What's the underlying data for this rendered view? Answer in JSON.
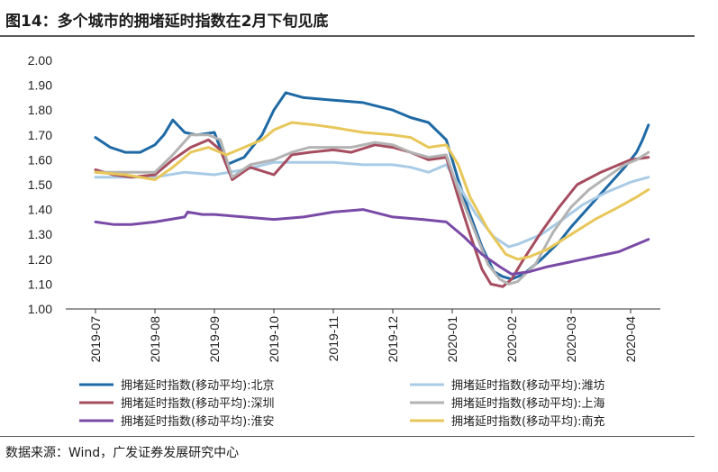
{
  "header": {
    "title": "图14：多个城市的拥堵延时指数在2月下旬见底"
  },
  "footer": {
    "source": "数据来源：Wind，广发证券发展研究中心"
  },
  "colors": {
    "beijing": "#1f6aa5",
    "weifang": "#a9cbe6",
    "shenzhen": "#a64d5f",
    "shanghai": "#b3b3b3",
    "huaian": "#7a4ba6",
    "nanchong": "#e8c75a"
  },
  "chart_data": {
    "type": "line",
    "title": "多个城市的拥堵延时指数在2月下旬见底",
    "xlabel": "",
    "ylabel": "",
    "ylim": [
      1.0,
      2.0
    ],
    "yticks": [
      "1.00",
      "1.10",
      "1.20",
      "1.30",
      "1.40",
      "1.50",
      "1.60",
      "1.70",
      "1.80",
      "1.90",
      "2.00"
    ],
    "categories": [
      "2019-07",
      "2019-08",
      "2019-09",
      "2019-10",
      "2019-11",
      "2019-12",
      "2020-01",
      "2020-02",
      "2020-03",
      "2020-04"
    ],
    "legend_position": "bottom",
    "series": [
      {
        "key": "beijing",
        "name": "拥堵延时指数(移动平均):北京",
        "points": [
          [
            0,
            1.69
          ],
          [
            0.25,
            1.65
          ],
          [
            0.5,
            1.63
          ],
          [
            0.75,
            1.63
          ],
          [
            1.0,
            1.66
          ],
          [
            1.15,
            1.7
          ],
          [
            1.3,
            1.76
          ],
          [
            1.5,
            1.71
          ],
          [
            1.7,
            1.7
          ],
          [
            2.0,
            1.71
          ],
          [
            2.2,
            1.58
          ],
          [
            2.5,
            1.61
          ],
          [
            2.8,
            1.7
          ],
          [
            3.0,
            1.8
          ],
          [
            3.2,
            1.87
          ],
          [
            3.5,
            1.85
          ],
          [
            4.0,
            1.84
          ],
          [
            4.5,
            1.83
          ],
          [
            5.0,
            1.8
          ],
          [
            5.3,
            1.77
          ],
          [
            5.6,
            1.75
          ],
          [
            5.9,
            1.68
          ],
          [
            6.1,
            1.52
          ],
          [
            6.3,
            1.38
          ],
          [
            6.5,
            1.25
          ],
          [
            6.7,
            1.15
          ],
          [
            6.85,
            1.13
          ],
          [
            7.0,
            1.12
          ],
          [
            7.2,
            1.14
          ],
          [
            7.5,
            1.2
          ],
          [
            7.8,
            1.27
          ],
          [
            8.0,
            1.33
          ],
          [
            8.3,
            1.41
          ],
          [
            8.6,
            1.49
          ],
          [
            8.9,
            1.57
          ],
          [
            9.1,
            1.63
          ],
          [
            9.2,
            1.68
          ],
          [
            9.3,
            1.74
          ]
        ]
      },
      {
        "key": "weifang",
        "name": "拥堵延时指数(移动平均):潍坊",
        "points": [
          [
            0,
            1.53
          ],
          [
            0.5,
            1.53
          ],
          [
            1.0,
            1.53
          ],
          [
            1.5,
            1.55
          ],
          [
            2.0,
            1.54
          ],
          [
            2.5,
            1.56
          ],
          [
            3.0,
            1.59
          ],
          [
            3.5,
            1.59
          ],
          [
            4.0,
            1.59
          ],
          [
            4.5,
            1.58
          ],
          [
            5.0,
            1.58
          ],
          [
            5.3,
            1.57
          ],
          [
            5.6,
            1.55
          ],
          [
            5.9,
            1.58
          ],
          [
            6.1,
            1.5
          ],
          [
            6.4,
            1.38
          ],
          [
            6.7,
            1.29
          ],
          [
            6.95,
            1.25
          ],
          [
            7.1,
            1.26
          ],
          [
            7.5,
            1.3
          ],
          [
            7.8,
            1.35
          ],
          [
            8.2,
            1.42
          ],
          [
            8.6,
            1.47
          ],
          [
            9.0,
            1.51
          ],
          [
            9.3,
            1.53
          ]
        ]
      },
      {
        "key": "shenzhen",
        "name": "拥堵延时指数(移动平均):深圳",
        "points": [
          [
            0,
            1.56
          ],
          [
            0.3,
            1.54
          ],
          [
            0.6,
            1.53
          ],
          [
            1.0,
            1.54
          ],
          [
            1.3,
            1.6
          ],
          [
            1.6,
            1.65
          ],
          [
            1.9,
            1.68
          ],
          [
            2.1,
            1.64
          ],
          [
            2.3,
            1.52
          ],
          [
            2.6,
            1.57
          ],
          [
            3.0,
            1.54
          ],
          [
            3.3,
            1.62
          ],
          [
            3.6,
            1.63
          ],
          [
            4.0,
            1.64
          ],
          [
            4.3,
            1.63
          ],
          [
            4.7,
            1.66
          ],
          [
            5.0,
            1.65
          ],
          [
            5.3,
            1.63
          ],
          [
            5.6,
            1.6
          ],
          [
            5.9,
            1.61
          ],
          [
            6.1,
            1.45
          ],
          [
            6.3,
            1.3
          ],
          [
            6.5,
            1.16
          ],
          [
            6.65,
            1.1
          ],
          [
            6.85,
            1.09
          ],
          [
            7.0,
            1.12
          ],
          [
            7.2,
            1.2
          ],
          [
            7.5,
            1.31
          ],
          [
            7.8,
            1.41
          ],
          [
            8.1,
            1.5
          ],
          [
            8.5,
            1.55
          ],
          [
            8.8,
            1.58
          ],
          [
            9.0,
            1.6
          ],
          [
            9.3,
            1.61
          ]
        ]
      },
      {
        "key": "shanghai",
        "name": "拥堵延时指数(移动平均):上海",
        "points": [
          [
            0,
            1.55
          ],
          [
            0.5,
            1.55
          ],
          [
            1.0,
            1.55
          ],
          [
            1.3,
            1.62
          ],
          [
            1.6,
            1.7
          ],
          [
            1.9,
            1.7
          ],
          [
            2.1,
            1.68
          ],
          [
            2.3,
            1.53
          ],
          [
            2.6,
            1.58
          ],
          [
            3.0,
            1.6
          ],
          [
            3.3,
            1.63
          ],
          [
            3.6,
            1.65
          ],
          [
            4.0,
            1.65
          ],
          [
            4.3,
            1.65
          ],
          [
            4.7,
            1.67
          ],
          [
            5.0,
            1.66
          ],
          [
            5.3,
            1.63
          ],
          [
            5.6,
            1.61
          ],
          [
            5.9,
            1.62
          ],
          [
            6.1,
            1.48
          ],
          [
            6.4,
            1.3
          ],
          [
            6.6,
            1.18
          ],
          [
            6.8,
            1.12
          ],
          [
            6.95,
            1.1
          ],
          [
            7.1,
            1.11
          ],
          [
            7.4,
            1.18
          ],
          [
            7.7,
            1.31
          ],
          [
            8.0,
            1.41
          ],
          [
            8.3,
            1.48
          ],
          [
            8.6,
            1.53
          ],
          [
            8.9,
            1.58
          ],
          [
            9.1,
            1.6
          ],
          [
            9.3,
            1.63
          ]
        ]
      },
      {
        "key": "huaian",
        "name": "拥堵延时指数(移动平均):淮安",
        "points": [
          [
            0,
            1.35
          ],
          [
            0.3,
            1.34
          ],
          [
            0.6,
            1.34
          ],
          [
            1.0,
            1.35
          ],
          [
            1.5,
            1.37
          ],
          [
            1.55,
            1.39
          ],
          [
            1.8,
            1.38
          ],
          [
            2.0,
            1.38
          ],
          [
            2.5,
            1.37
          ],
          [
            3.0,
            1.36
          ],
          [
            3.5,
            1.37
          ],
          [
            4.0,
            1.39
          ],
          [
            4.5,
            1.4
          ],
          [
            5.0,
            1.37
          ],
          [
            5.5,
            1.36
          ],
          [
            5.9,
            1.35
          ],
          [
            6.2,
            1.29
          ],
          [
            6.5,
            1.22
          ],
          [
            6.8,
            1.17
          ],
          [
            7.0,
            1.14
          ],
          [
            7.3,
            1.15
          ],
          [
            7.6,
            1.17
          ],
          [
            8.0,
            1.19
          ],
          [
            8.4,
            1.21
          ],
          [
            8.8,
            1.23
          ],
          [
            9.1,
            1.26
          ],
          [
            9.3,
            1.28
          ]
        ]
      },
      {
        "key": "nanchong",
        "name": "拥堵延时指数(移动平均):南充",
        "points": [
          [
            0,
            1.55
          ],
          [
            0.5,
            1.54
          ],
          [
            1.0,
            1.52
          ],
          [
            1.3,
            1.57
          ],
          [
            1.6,
            1.63
          ],
          [
            1.9,
            1.65
          ],
          [
            2.2,
            1.62
          ],
          [
            2.5,
            1.65
          ],
          [
            2.8,
            1.68
          ],
          [
            3.0,
            1.72
          ],
          [
            3.3,
            1.75
          ],
          [
            3.7,
            1.74
          ],
          [
            4.0,
            1.73
          ],
          [
            4.5,
            1.71
          ],
          [
            5.0,
            1.7
          ],
          [
            5.3,
            1.69
          ],
          [
            5.6,
            1.65
          ],
          [
            5.9,
            1.66
          ],
          [
            6.1,
            1.58
          ],
          [
            6.3,
            1.45
          ],
          [
            6.6,
            1.32
          ],
          [
            6.9,
            1.22
          ],
          [
            7.1,
            1.2
          ],
          [
            7.3,
            1.21
          ],
          [
            7.6,
            1.24
          ],
          [
            8.0,
            1.3
          ],
          [
            8.4,
            1.36
          ],
          [
            8.8,
            1.41
          ],
          [
            9.1,
            1.45
          ],
          [
            9.3,
            1.48
          ]
        ]
      }
    ]
  }
}
